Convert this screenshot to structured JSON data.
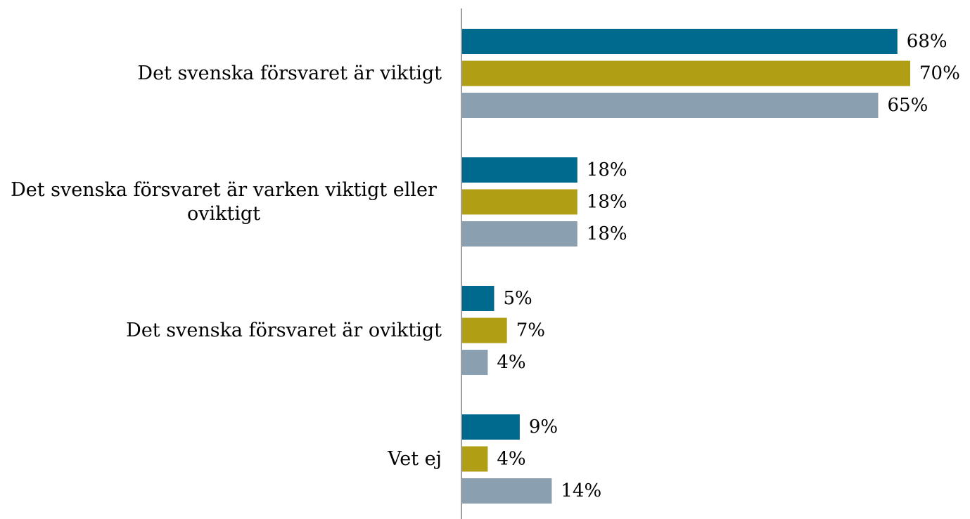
{
  "chart_data": {
    "type": "barh",
    "categories": [
      "Det svenska försvaret är viktigt",
      "Det svenska försvaret är varken viktigt eller oviktigt",
      "Det svenska försvaret är oviktigt",
      "Vet ej"
    ],
    "series": [
      {
        "color": "#006a8e",
        "values": [
          68,
          18,
          5,
          9
        ],
        "value_labels": [
          "68%",
          "18%",
          "5%",
          "9%"
        ]
      },
      {
        "color": "#b09f15",
        "values": [
          70,
          18,
          7,
          4
        ],
        "value_labels": [
          "70%",
          "18%",
          "7%",
          "4%"
        ]
      },
      {
        "color": "#8a9fb0",
        "values": [
          65,
          18,
          4,
          14
        ],
        "value_labels": [
          "65%",
          "18%",
          "4%",
          "14%"
        ]
      }
    ]
  }
}
